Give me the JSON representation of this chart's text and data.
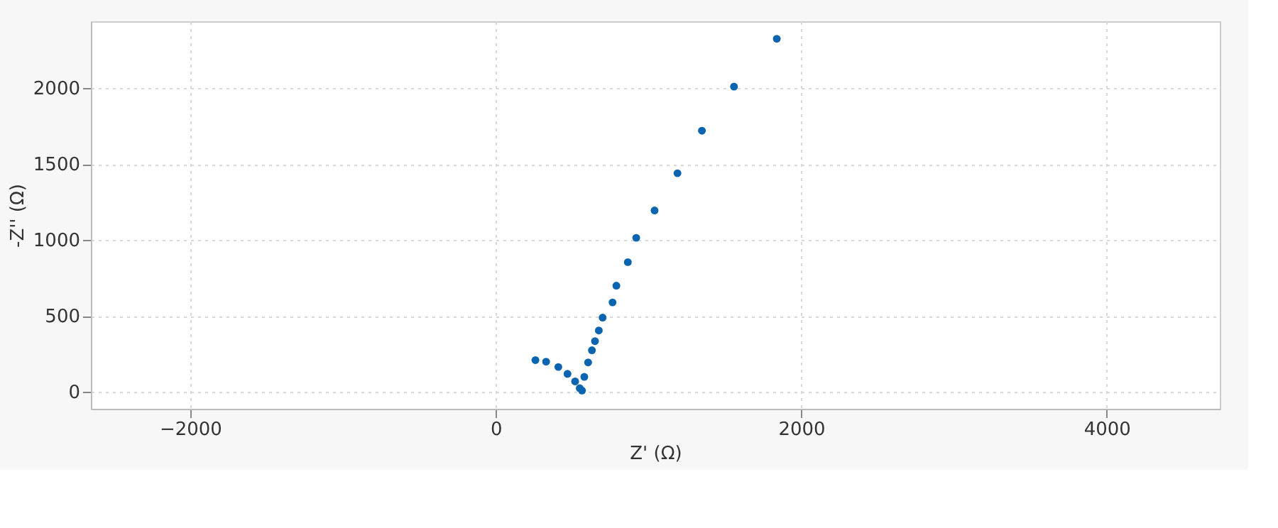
{
  "chart_data": {
    "type": "scatter",
    "xlabel": "Z' (Ω)",
    "ylabel": "-Z'' (Ω)",
    "x": [
      260,
      330,
      410,
      470,
      520,
      550,
      565,
      580,
      605,
      630,
      650,
      675,
      700,
      765,
      790,
      865,
      920,
      1040,
      1190,
      1350,
      1560,
      1840
    ],
    "series": [
      {
        "color": "#0b64b0",
        "values": [
          210,
          200,
          165,
          120,
          70,
          25,
          10,
          100,
          195,
          275,
          335,
          405,
          490,
          590,
          700,
          855,
          1015,
          1195,
          1440,
          1720,
          2010,
          2325
        ]
      }
    ],
    "xlim": [
      -2650,
      4740
    ],
    "ylim": [
      -110,
      2440
    ],
    "xticks": [
      -2000,
      0,
      2000,
      4000
    ],
    "yticks": [
      0,
      500,
      1000,
      1500,
      2000
    ],
    "grid": true,
    "marker": "circle"
  }
}
